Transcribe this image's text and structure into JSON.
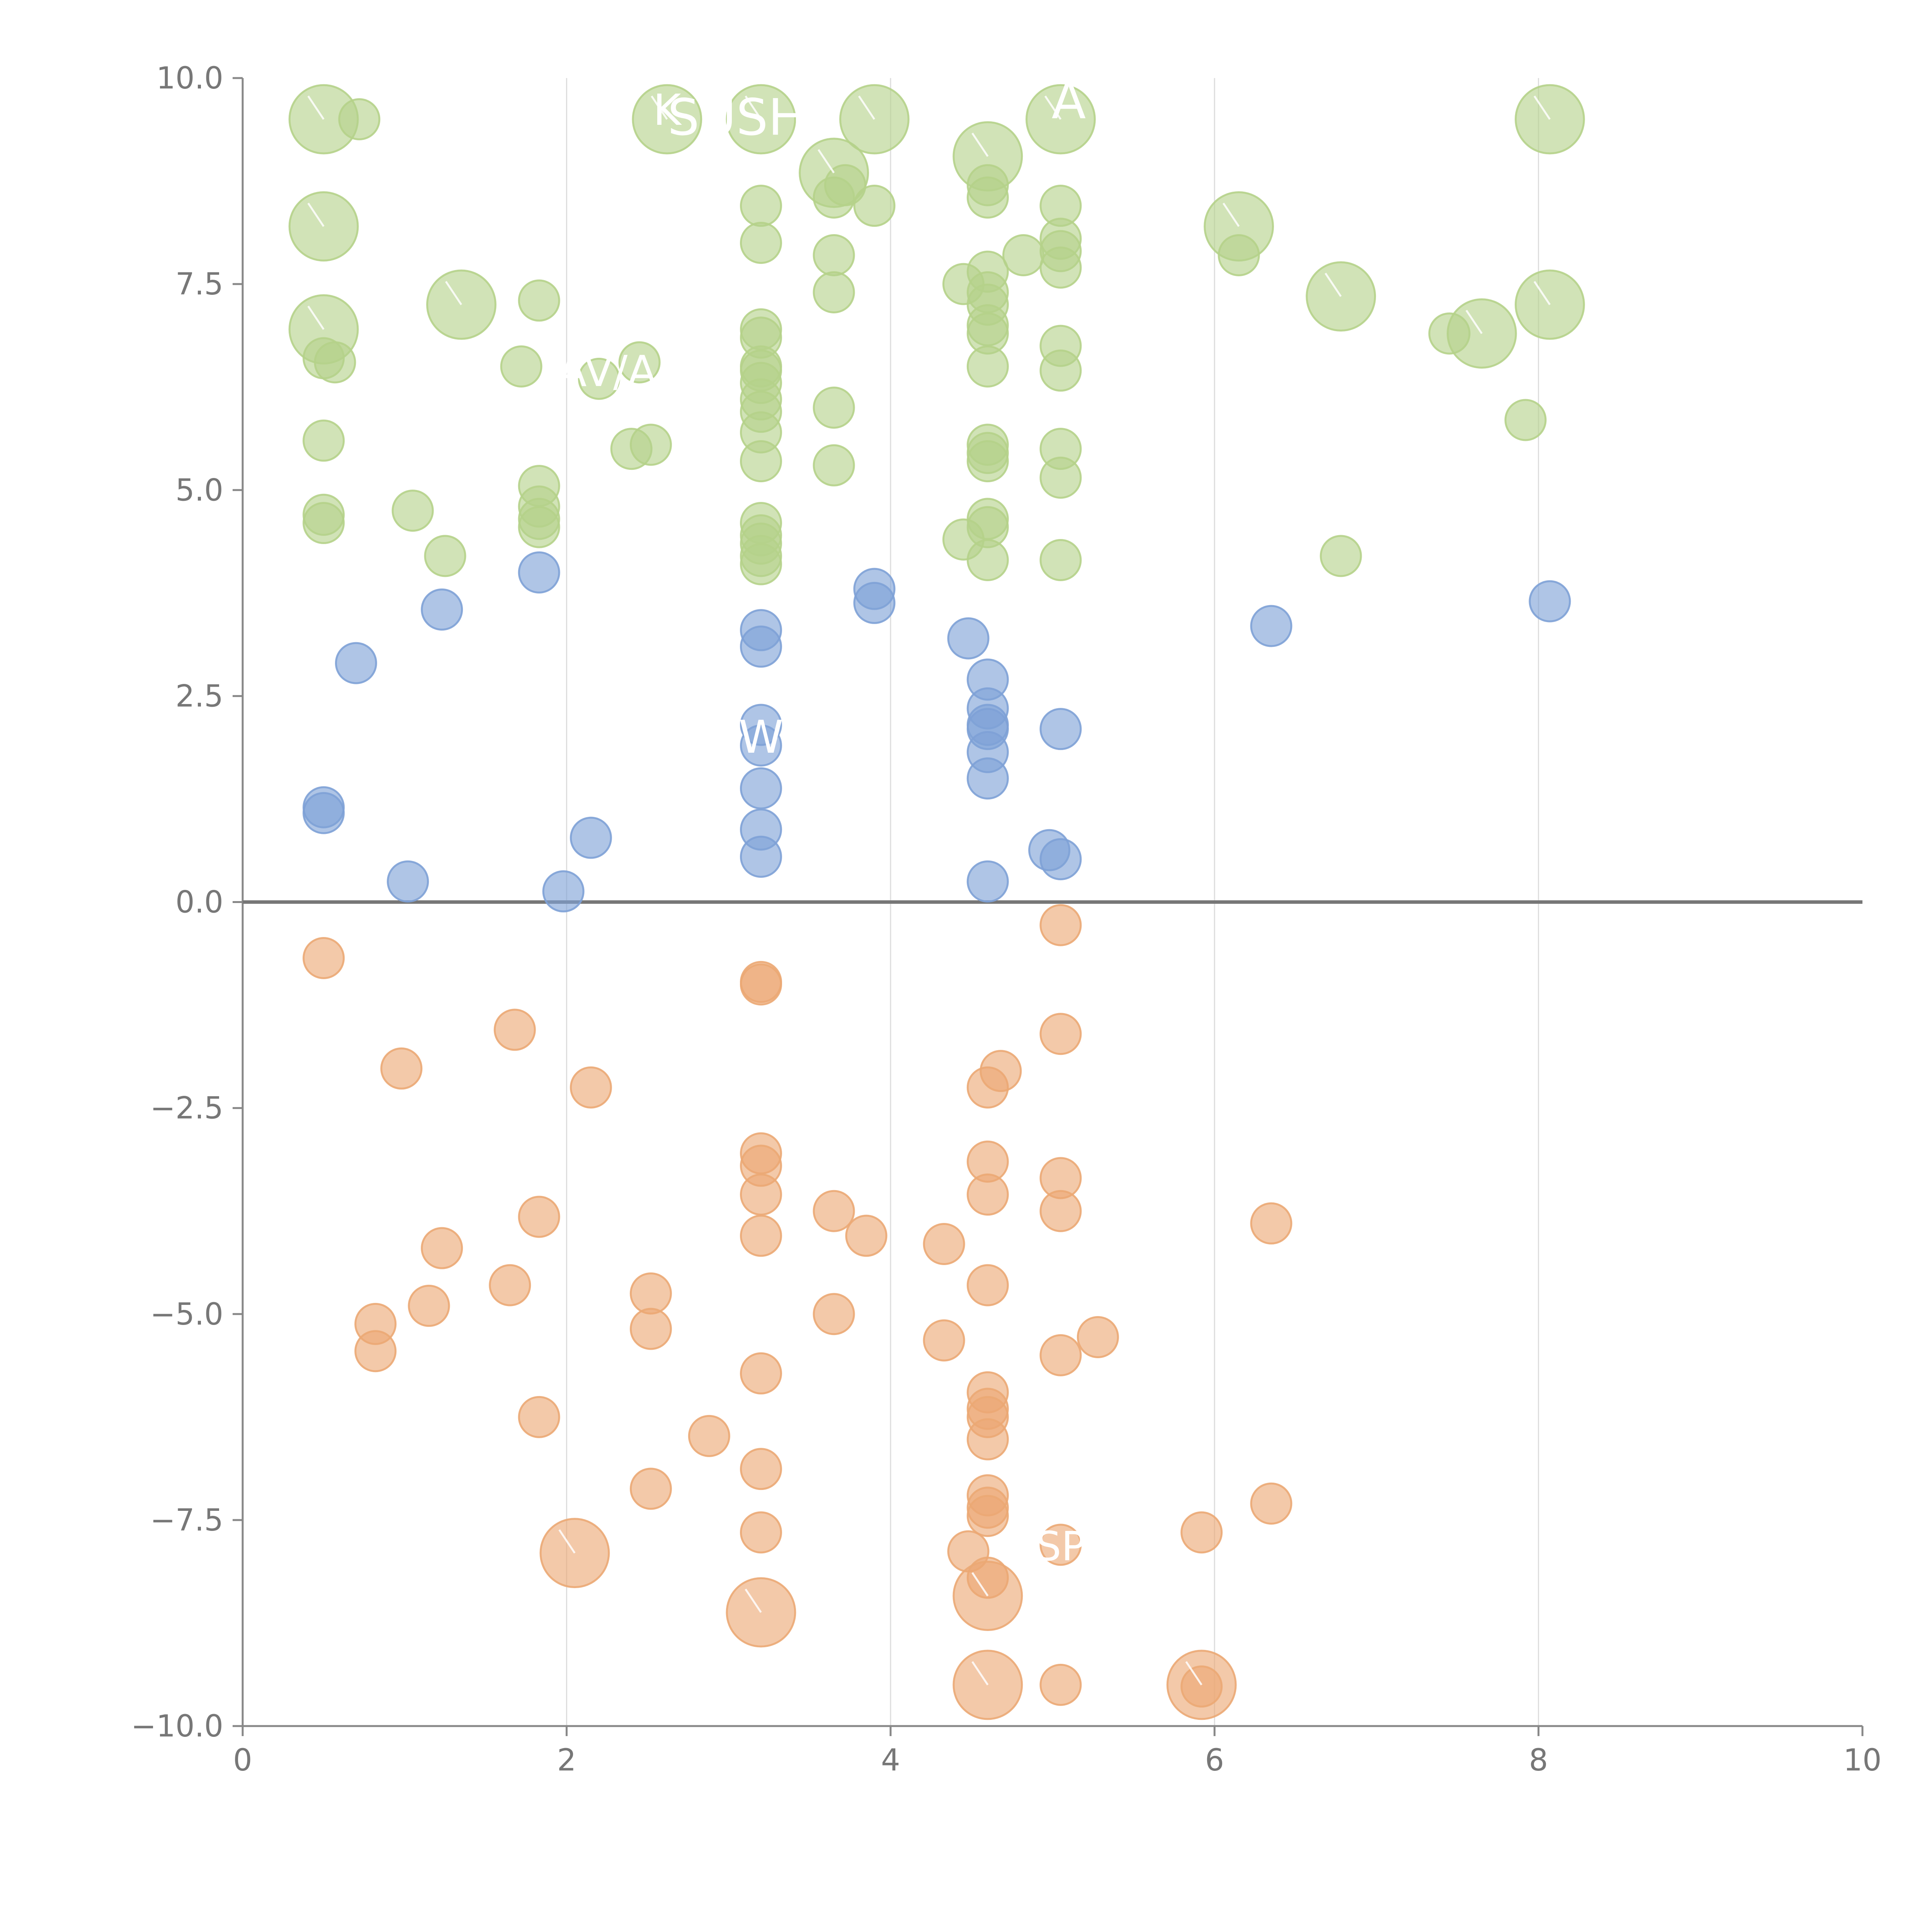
{
  "chart_data": {
    "type": "scatter",
    "subtype": "bubble",
    "title": "",
    "xlabel": "",
    "ylabel": "",
    "xlim": [
      0,
      10
    ],
    "ylim": [
      -10,
      10
    ],
    "xticks": [
      "0",
      "2",
      "4",
      "6",
      "8",
      "10"
    ],
    "yticks": [
      "−10.0",
      "−7.5",
      "−5.0",
      "−2.5",
      "0.0",
      "2.5",
      "5.0",
      "7.5",
      "10.0"
    ],
    "xtick_values": [
      0,
      2,
      4,
      6,
      8,
      10
    ],
    "ytick_values": [
      -10,
      -7.5,
      -5,
      -2.5,
      0,
      2.5,
      5,
      7.5,
      10
    ],
    "vertical_gridlines_at": [
      2,
      4,
      6,
      8
    ],
    "zero_line": true,
    "colors": {
      "green": "#b5d28a",
      "blue": "#7ea1d6",
      "orange": "#eba874",
      "axis": "#888888"
    },
    "series": [
      {
        "name": "green",
        "color": "#b5d28a",
        "points": [
          {
            "x": 0.5,
            "y": 9.5,
            "s": 1.7
          },
          {
            "x": 0.72,
            "y": 9.5,
            "s": 1
          },
          {
            "x": 0.5,
            "y": 8.2,
            "s": 1.7
          },
          {
            "x": 0.5,
            "y": 6.95,
            "s": 1.7
          },
          {
            "x": 0.5,
            "y": 6.6,
            "s": 1
          },
          {
            "x": 0.57,
            "y": 6.55,
            "s": 1
          },
          {
            "x": 0.5,
            "y": 5.6,
            "s": 1
          },
          {
            "x": 0.5,
            "y": 4.7,
            "s": 1
          },
          {
            "x": 0.5,
            "y": 4.6,
            "s": 1
          },
          {
            "x": 1.05,
            "y": 4.75,
            "s": 1
          },
          {
            "x": 1.25,
            "y": 4.2,
            "s": 1
          },
          {
            "x": 1.35,
            "y": 7.25,
            "s": 1.7
          },
          {
            "x": 1.72,
            "y": 6.5,
            "s": 1
          },
          {
            "x": 1.83,
            "y": 7.3,
            "s": 1
          },
          {
            "x": 1.83,
            "y": 5.05,
            "s": 1
          },
          {
            "x": 1.83,
            "y": 4.8,
            "s": 1
          },
          {
            "x": 1.83,
            "y": 4.65,
            "s": 1
          },
          {
            "x": 1.83,
            "y": 4.55,
            "s": 1
          },
          {
            "x": 2.2,
            "y": 6.35,
            "s": 1
          },
          {
            "x": 2.4,
            "y": 5.5,
            "s": 1
          },
          {
            "x": 2.45,
            "y": 6.55,
            "s": 1
          },
          {
            "x": 2.52,
            "y": 5.55,
            "s": 1
          },
          {
            "x": 2.62,
            "y": 9.5,
            "s": 1.7
          },
          {
            "x": 3.2,
            "y": 9.5,
            "s": 1.7
          },
          {
            "x": 3.2,
            "y": 8.45,
            "s": 1
          },
          {
            "x": 3.2,
            "y": 8.0,
            "s": 1
          },
          {
            "x": 3.2,
            "y": 6.95,
            "s": 1
          },
          {
            "x": 3.2,
            "y": 6.85,
            "s": 1
          },
          {
            "x": 3.2,
            "y": 6.5,
            "s": 1
          },
          {
            "x": 3.2,
            "y": 6.45,
            "s": 1
          },
          {
            "x": 3.2,
            "y": 6.3,
            "s": 1
          },
          {
            "x": 3.2,
            "y": 6.1,
            "s": 1
          },
          {
            "x": 3.2,
            "y": 5.95,
            "s": 1
          },
          {
            "x": 3.2,
            "y": 5.7,
            "s": 1
          },
          {
            "x": 3.2,
            "y": 5.35,
            "s": 1
          },
          {
            "x": 3.2,
            "y": 4.6,
            "s": 1
          },
          {
            "x": 3.2,
            "y": 4.45,
            "s": 1
          },
          {
            "x": 3.2,
            "y": 4.35,
            "s": 1
          },
          {
            "x": 3.2,
            "y": 4.2,
            "s": 1
          },
          {
            "x": 3.2,
            "y": 4.1,
            "s": 1
          },
          {
            "x": 3.65,
            "y": 8.85,
            "s": 1.7
          },
          {
            "x": 3.65,
            "y": 8.55,
            "s": 1
          },
          {
            "x": 3.72,
            "y": 8.7,
            "s": 1
          },
          {
            "x": 3.65,
            "y": 7.85,
            "s": 1
          },
          {
            "x": 3.65,
            "y": 7.4,
            "s": 1
          },
          {
            "x": 3.65,
            "y": 6.0,
            "s": 1
          },
          {
            "x": 3.65,
            "y": 5.3,
            "s": 1
          },
          {
            "x": 3.9,
            "y": 9.5,
            "s": 1.7
          },
          {
            "x": 3.9,
            "y": 8.45,
            "s": 1
          },
          {
            "x": 4.6,
            "y": 9.05,
            "s": 1.7
          },
          {
            "x": 4.6,
            "y": 8.7,
            "s": 1
          },
          {
            "x": 4.6,
            "y": 8.55,
            "s": 1
          },
          {
            "x": 4.82,
            "y": 7.85,
            "s": 1
          },
          {
            "x": 4.6,
            "y": 7.65,
            "s": 1
          },
          {
            "x": 4.45,
            "y": 7.5,
            "s": 1
          },
          {
            "x": 4.6,
            "y": 7.4,
            "s": 1
          },
          {
            "x": 4.6,
            "y": 7.25,
            "s": 1
          },
          {
            "x": 4.6,
            "y": 7.0,
            "s": 1
          },
          {
            "x": 4.6,
            "y": 6.9,
            "s": 1
          },
          {
            "x": 4.6,
            "y": 6.5,
            "s": 1
          },
          {
            "x": 4.6,
            "y": 5.55,
            "s": 1
          },
          {
            "x": 4.6,
            "y": 5.45,
            "s": 1
          },
          {
            "x": 4.6,
            "y": 5.35,
            "s": 1
          },
          {
            "x": 4.6,
            "y": 4.65,
            "s": 1
          },
          {
            "x": 4.6,
            "y": 4.55,
            "s": 1
          },
          {
            "x": 4.45,
            "y": 4.4,
            "s": 1
          },
          {
            "x": 4.6,
            "y": 4.15,
            "s": 1
          },
          {
            "x": 5.05,
            "y": 9.5,
            "s": 1.7
          },
          {
            "x": 5.05,
            "y": 8.45,
            "s": 1
          },
          {
            "x": 5.05,
            "y": 8.05,
            "s": 1
          },
          {
            "x": 5.05,
            "y": 7.9,
            "s": 1
          },
          {
            "x": 5.05,
            "y": 7.7,
            "s": 1
          },
          {
            "x": 5.05,
            "y": 6.75,
            "s": 1
          },
          {
            "x": 5.05,
            "y": 6.45,
            "s": 1
          },
          {
            "x": 5.05,
            "y": 5.5,
            "s": 1
          },
          {
            "x": 5.05,
            "y": 5.15,
            "s": 1
          },
          {
            "x": 5.05,
            "y": 4.15,
            "s": 1
          },
          {
            "x": 6.15,
            "y": 8.2,
            "s": 1.7
          },
          {
            "x": 6.15,
            "y": 7.85,
            "s": 1
          },
          {
            "x": 6.78,
            "y": 7.35,
            "s": 1.7
          },
          {
            "x": 6.78,
            "y": 4.2,
            "s": 1
          },
          {
            "x": 7.45,
            "y": 6.9,
            "s": 1
          },
          {
            "x": 7.65,
            "y": 6.9,
            "s": 1.7
          },
          {
            "x": 7.92,
            "y": 5.85,
            "s": 1
          },
          {
            "x": 8.07,
            "y": 9.5,
            "s": 1.7
          },
          {
            "x": 8.07,
            "y": 7.25,
            "s": 1.7
          }
        ]
      },
      {
        "name": "blue",
        "color": "#7ea1d6",
        "points": [
          {
            "x": 0.5,
            "y": 1.15,
            "s": 1
          },
          {
            "x": 0.5,
            "y": 1.08,
            "s": 1
          },
          {
            "x": 0.7,
            "y": 2.9,
            "s": 1
          },
          {
            "x": 1.02,
            "y": 0.25,
            "s": 1
          },
          {
            "x": 1.23,
            "y": 3.55,
            "s": 1
          },
          {
            "x": 1.83,
            "y": 4.0,
            "s": 1
          },
          {
            "x": 1.98,
            "y": 0.13,
            "s": 1
          },
          {
            "x": 2.15,
            "y": 0.78,
            "s": 1
          },
          {
            "x": 3.2,
            "y": 3.3,
            "s": 1
          },
          {
            "x": 3.2,
            "y": 3.1,
            "s": 1
          },
          {
            "x": 3.2,
            "y": 2.15,
            "s": 1
          },
          {
            "x": 3.2,
            "y": 1.9,
            "s": 1
          },
          {
            "x": 3.2,
            "y": 1.38,
            "s": 1
          },
          {
            "x": 3.2,
            "y": 0.88,
            "s": 1
          },
          {
            "x": 3.2,
            "y": 0.55,
            "s": 1
          },
          {
            "x": 3.9,
            "y": 3.8,
            "s": 1
          },
          {
            "x": 3.9,
            "y": 3.63,
            "s": 1
          },
          {
            "x": 4.48,
            "y": 3.2,
            "s": 1
          },
          {
            "x": 4.6,
            "y": 2.7,
            "s": 1
          },
          {
            "x": 4.6,
            "y": 2.35,
            "s": 1
          },
          {
            "x": 4.6,
            "y": 2.15,
            "s": 1
          },
          {
            "x": 4.6,
            "y": 2.1,
            "s": 1
          },
          {
            "x": 4.6,
            "y": 1.82,
            "s": 1
          },
          {
            "x": 4.6,
            "y": 1.5,
            "s": 1
          },
          {
            "x": 4.6,
            "y": 0.25,
            "s": 1
          },
          {
            "x": 4.98,
            "y": 0.63,
            "s": 1
          },
          {
            "x": 5.05,
            "y": 0.52,
            "s": 1
          },
          {
            "x": 5.05,
            "y": 2.1,
            "s": 1
          },
          {
            "x": 6.35,
            "y": 3.35,
            "s": 1
          },
          {
            "x": 8.07,
            "y": 3.65,
            "s": 1
          }
        ]
      },
      {
        "name": "orange",
        "color": "#eba874",
        "points": [
          {
            "x": 0.5,
            "y": -0.68,
            "s": 1
          },
          {
            "x": 0.98,
            "y": -2.02,
            "s": 1
          },
          {
            "x": 0.82,
            "y": -5.12,
            "s": 1
          },
          {
            "x": 0.82,
            "y": -5.45,
            "s": 1
          },
          {
            "x": 1.15,
            "y": -4.9,
            "s": 1
          },
          {
            "x": 1.23,
            "y": -4.2,
            "s": 1
          },
          {
            "x": 1.68,
            "y": -1.55,
            "s": 1
          },
          {
            "x": 1.65,
            "y": -4.65,
            "s": 1
          },
          {
            "x": 1.83,
            "y": -3.82,
            "s": 1
          },
          {
            "x": 1.83,
            "y": -6.25,
            "s": 1
          },
          {
            "x": 2.05,
            "y": -7.9,
            "s": 1.7
          },
          {
            "x": 2.15,
            "y": -2.25,
            "s": 1
          },
          {
            "x": 2.52,
            "y": -4.75,
            "s": 1
          },
          {
            "x": 2.52,
            "y": -5.18,
            "s": 1
          },
          {
            "x": 2.52,
            "y": -7.12,
            "s": 1
          },
          {
            "x": 2.88,
            "y": -6.48,
            "s": 1
          },
          {
            "x": 3.2,
            "y": -0.97,
            "s": 1
          },
          {
            "x": 3.2,
            "y": -1.0,
            "s": 1
          },
          {
            "x": 3.2,
            "y": -3.05,
            "s": 1
          },
          {
            "x": 3.2,
            "y": -3.2,
            "s": 1
          },
          {
            "x": 3.2,
            "y": -3.55,
            "s": 1
          },
          {
            "x": 3.2,
            "y": -4.05,
            "s": 1
          },
          {
            "x": 3.2,
            "y": -5.72,
            "s": 1
          },
          {
            "x": 3.2,
            "y": -6.88,
            "s": 1
          },
          {
            "x": 3.2,
            "y": -7.65,
            "s": 1
          },
          {
            "x": 3.2,
            "y": -8.62,
            "s": 1.7
          },
          {
            "x": 3.65,
            "y": -3.75,
            "s": 1
          },
          {
            "x": 3.65,
            "y": -5.0,
            "s": 1
          },
          {
            "x": 3.85,
            "y": -4.05,
            "s": 1
          },
          {
            "x": 4.33,
            "y": -4.15,
            "s": 1
          },
          {
            "x": 4.33,
            "y": -5.32,
            "s": 1
          },
          {
            "x": 4.48,
            "y": -7.88,
            "s": 1
          },
          {
            "x": 4.6,
            "y": -2.25,
            "s": 1
          },
          {
            "x": 4.68,
            "y": -2.05,
            "s": 1
          },
          {
            "x": 4.6,
            "y": -3.15,
            "s": 1
          },
          {
            "x": 4.6,
            "y": -3.55,
            "s": 1
          },
          {
            "x": 4.6,
            "y": -4.65,
            "s": 1
          },
          {
            "x": 4.6,
            "y": -5.95,
            "s": 1
          },
          {
            "x": 4.6,
            "y": -6.15,
            "s": 1
          },
          {
            "x": 4.6,
            "y": -6.25,
            "s": 1
          },
          {
            "x": 4.6,
            "y": -6.52,
            "s": 1
          },
          {
            "x": 4.6,
            "y": -7.2,
            "s": 1
          },
          {
            "x": 4.6,
            "y": -7.35,
            "s": 1
          },
          {
            "x": 4.6,
            "y": -7.45,
            "s": 1
          },
          {
            "x": 4.6,
            "y": -8.2,
            "s": 1
          },
          {
            "x": 4.6,
            "y": -8.42,
            "s": 1.7
          },
          {
            "x": 4.6,
            "y": -9.5,
            "s": 1.7
          },
          {
            "x": 5.05,
            "y": -0.28,
            "s": 1
          },
          {
            "x": 5.05,
            "y": -1.6,
            "s": 1
          },
          {
            "x": 5.05,
            "y": -3.35,
            "s": 1
          },
          {
            "x": 5.05,
            "y": -3.75,
            "s": 1
          },
          {
            "x": 5.05,
            "y": -5.5,
            "s": 1
          },
          {
            "x": 5.05,
            "y": -7.8,
            "s": 1
          },
          {
            "x": 5.05,
            "y": -9.5,
            "s": 1
          },
          {
            "x": 5.28,
            "y": -5.28,
            "s": 1
          },
          {
            "x": 5.92,
            "y": -7.65,
            "s": 1
          },
          {
            "x": 5.92,
            "y": -9.5,
            "s": 1.7
          },
          {
            "x": 5.92,
            "y": -9.52,
            "s": 1
          },
          {
            "x": 6.35,
            "y": -3.9,
            "s": 1
          },
          {
            "x": 6.35,
            "y": -7.3,
            "s": 1
          }
        ]
      }
    ],
    "annotations": [
      {
        "text": "K",
        "x": 2.62,
        "y": 9.62,
        "size": 0.85
      },
      {
        "text": "SUSH",
        "x": 3.05,
        "y": 9.5,
        "size": 1.0
      },
      {
        "text": "A",
        "x": 5.1,
        "y": 9.7,
        "size": 1.0
      },
      {
        "text": "AV/A",
        "x": 2.25,
        "y": 6.45,
        "size": 0.85
      },
      {
        "text": "W",
        "x": 3.2,
        "y": 2.0,
        "size": 0.9
      },
      {
        "text": "SP",
        "x": 5.05,
        "y": -7.8,
        "size": 0.8
      }
    ]
  }
}
